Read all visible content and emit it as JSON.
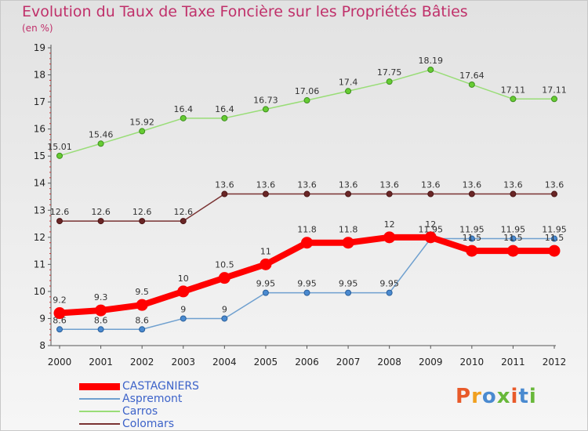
{
  "title": "Evolution du Taux de Taxe Foncière sur les Propriétés Bâties",
  "subtitle": "(en %)",
  "logo": "Proxiti",
  "chart_data": {
    "type": "line",
    "categories": [
      "2000",
      "2001",
      "2002",
      "2003",
      "2004",
      "2005",
      "2006",
      "2007",
      "2008",
      "2009",
      "2010",
      "2011",
      "2012"
    ],
    "ylim": [
      8,
      19
    ],
    "yticks": [
      8,
      9,
      10,
      11,
      12,
      13,
      14,
      15,
      16,
      17,
      18,
      19
    ],
    "grid": false,
    "legend_position": "bottom-left",
    "series": [
      {
        "name": "CASTAGNIERS",
        "color": "#ff0000",
        "values": [
          9.2,
          9.3,
          9.5,
          10,
          10.5,
          11,
          11.8,
          11.8,
          12,
          12,
          11.5,
          11.5,
          11.5
        ],
        "labels": [
          "9.2",
          "9.3",
          "9.5",
          "10",
          "10.5",
          "11",
          "11.8",
          "11.8",
          "12",
          "12",
          "11.5",
          "11.5",
          "11.5"
        ]
      },
      {
        "name": "Aspremont",
        "color": "#6fa0cf",
        "values": [
          8.6,
          8.6,
          8.6,
          9,
          9,
          9.95,
          9.95,
          9.95,
          9.95,
          11.95,
          11.95,
          11.95,
          11.95
        ],
        "labels": [
          "8.6",
          "8.6",
          "8.6",
          "9",
          "9",
          "9.95",
          "9.95",
          "9.95",
          "9.95",
          "11.95",
          "11.95",
          "11.95",
          "11.95"
        ]
      },
      {
        "name": "Carros",
        "color": "#99dd77",
        "values": [
          15.01,
          15.46,
          15.92,
          16.4,
          16.4,
          16.73,
          17.06,
          17.4,
          17.75,
          18.19,
          17.64,
          17.11,
          17.11
        ],
        "labels": [
          "15.01",
          "15.46",
          "15.92",
          "16.4",
          "16.4",
          "16.73",
          "17.06",
          "17.4",
          "17.75",
          "18.19",
          "17.64",
          "17.11",
          "17.11"
        ]
      },
      {
        "name": "Colomars",
        "color": "#7a3333",
        "values": [
          12.6,
          12.6,
          12.6,
          12.6,
          13.6,
          13.6,
          13.6,
          13.6,
          13.6,
          13.6,
          13.6,
          13.6,
          13.6
        ],
        "labels": [
          "12.6",
          "12.6",
          "12.6",
          "12.6",
          "13.6",
          "13.6",
          "13.6",
          "13.6",
          "13.6",
          "13.6",
          "13.6",
          "13.6",
          "13.6"
        ]
      }
    ]
  }
}
